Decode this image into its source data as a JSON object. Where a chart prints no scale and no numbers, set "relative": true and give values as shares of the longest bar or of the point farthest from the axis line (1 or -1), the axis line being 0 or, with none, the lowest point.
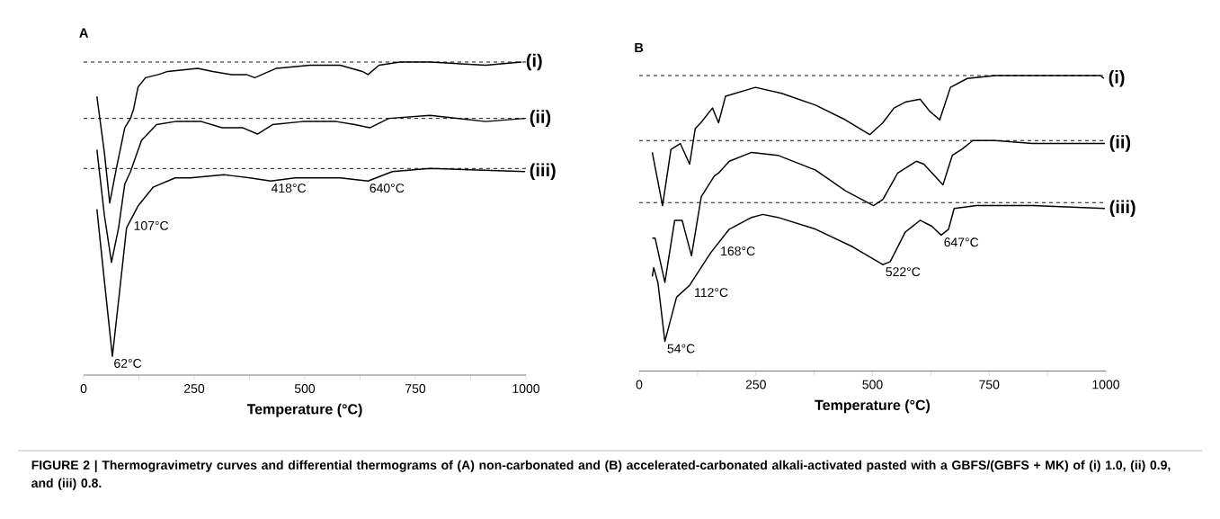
{
  "chart_data": [
    {
      "type": "line",
      "title": "A",
      "xlabel": "Temperature (°C)",
      "relative": true,
      "xlim": [
        0,
        1000
      ],
      "xticks": [
        0,
        {
          "value": 125,
          "label": null
        },
        250,
        {
          "value": 375,
          "label": null
        },
        500,
        {
          "value": 625,
          "label": null
        },
        750,
        {
          "value": 875,
          "label": null
        },
        1000
      ],
      "series": [
        {
          "name": "(i)",
          "color": "#000000",
          "x": [
            30,
            47,
            59,
            74,
            93,
            106,
            113,
            123,
            140,
            169,
            190,
            258,
            292,
            334,
            368,
            387,
            436,
            512,
            580,
            630,
            643,
            668,
            715,
            783,
            909,
            990
          ],
          "values": [
            0.89,
            0.71,
            0.55,
            0.66,
            0.79,
            0.82,
            0.85,
            0.92,
            0.95,
            0.96,
            0.97,
            0.98,
            0.97,
            0.96,
            0.96,
            0.95,
            0.98,
            0.99,
            0.99,
            0.97,
            0.96,
            0.99,
            1.0,
            1.0,
            0.99,
            1.0
          ]
        },
        {
          "name": "(ii)",
          "color": "#000000",
          "x": [
            30,
            47,
            63,
            79,
            93,
            106,
            116,
            131,
            165,
            207,
            266,
            313,
            360,
            393,
            427,
            495,
            571,
            613,
            647,
            690,
            783,
            909,
            998
          ],
          "values": [
            0.72,
            0.51,
            0.36,
            0.47,
            0.61,
            0.65,
            0.69,
            0.75,
            0.8,
            0.81,
            0.81,
            0.79,
            0.79,
            0.77,
            0.8,
            0.81,
            0.81,
            0.8,
            0.79,
            0.82,
            0.83,
            0.81,
            0.82
          ]
        },
        {
          "name": "(iii)",
          "color": "#000000",
          "x": [
            30,
            47,
            65,
            80,
            97,
            123,
            157,
            207,
            241,
            317,
            376,
            423,
            478,
            580,
            643,
            698,
            783,
            998
          ],
          "values": [
            0.53,
            0.3,
            0.06,
            0.25,
            0.47,
            0.54,
            0.6,
            0.63,
            0.63,
            0.64,
            0.63,
            0.62,
            0.63,
            0.63,
            0.62,
            0.65,
            0.66,
            0.65
          ]
        }
      ],
      "ref_lines": [
        {
          "axis": "y",
          "value": 1.0,
          "color": "#000000",
          "line_style": "dashed"
        },
        {
          "axis": "y",
          "value": 0.82,
          "color": "#000000",
          "line_style": "dashed"
        },
        {
          "axis": "y",
          "value": 0.66,
          "color": "#000000",
          "line_style": "dashed"
        }
      ],
      "annotations": [
        {
          "text": "62°C",
          "x": 62,
          "y": 0.06
        },
        {
          "text": "107°C",
          "x": 107,
          "y": 0.5
        },
        {
          "text": "418°C",
          "x": 418,
          "y": 0.62
        },
        {
          "text": "640°C",
          "x": 640,
          "y": 0.62
        },
        "FIGURE 2 | Thermogravimetry curves and differential thermograms of (A) non-carbonated and (B) accelerated-carbonated alkali-activated pasted with a GBFS/(GBFS + MK) of (i) 1.0, (ii) 0.9, and (iii) 0.8."
      ]
    },
    {
      "type": "line",
      "title": "B",
      "xlabel": "Temperature (°C)",
      "relative": true,
      "xlim": [
        0,
        1000
      ],
      "xticks": [
        0,
        {
          "value": 125,
          "label": null
        },
        250,
        {
          "value": 375,
          "label": null
        },
        500,
        {
          "value": 625,
          "label": null
        },
        750,
        {
          "value": 875,
          "label": null
        },
        1000
      ],
      "series": [
        {
          "name": "(i)",
          "color": "#000000",
          "x": [
            28,
            50,
            68,
            88,
            108,
            120,
            132,
            157,
            170,
            185,
            249,
            305,
            378,
            442,
            494,
            522,
            546,
            570,
            602,
            622,
            644,
            667,
            703,
            763,
            988,
            996
          ],
          "values": [
            0.74,
            0.56,
            0.75,
            0.77,
            0.7,
            0.82,
            0.84,
            0.89,
            0.84,
            0.93,
            0.96,
            0.94,
            0.9,
            0.85,
            0.8,
            0.84,
            0.89,
            0.91,
            0.92,
            0.88,
            0.85,
            0.96,
            0.99,
            1.0,
            1.0,
            0.99
          ]
        },
        {
          "name": "(ii)",
          "color": "#000000",
          "x": [
            28,
            34,
            55,
            76,
            92,
            112,
            133,
            161,
            170,
            193,
            241,
            297,
            378,
            442,
            502,
            522,
            554,
            594,
            610,
            651,
            671,
            691,
            715,
            763,
            843,
            998
          ],
          "values": [
            0.45,
            0.45,
            0.3,
            0.51,
            0.51,
            0.39,
            0.59,
            0.66,
            0.67,
            0.71,
            0.74,
            0.73,
            0.68,
            0.61,
            0.56,
            0.58,
            0.67,
            0.71,
            0.7,
            0.63,
            0.73,
            0.75,
            0.78,
            0.78,
            0.77,
            0.77
          ]
        },
        {
          "name": "(iii)",
          "color": "#000000",
          "x": [
            28,
            31,
            40,
            55,
            80,
            108,
            153,
            193,
            241,
            265,
            297,
            378,
            458,
            522,
            538,
            570,
            602,
            627,
            647,
            663,
            675,
            723,
            843,
            998
          ],
          "values": [
            0.32,
            0.35,
            0.3,
            0.1,
            0.25,
            0.29,
            0.4,
            0.48,
            0.52,
            0.53,
            0.52,
            0.48,
            0.42,
            0.36,
            0.37,
            0.47,
            0.51,
            0.49,
            0.46,
            0.48,
            0.55,
            0.56,
            0.56,
            0.55
          ]
        }
      ],
      "ref_lines": [
        {
          "axis": "y",
          "value": 1.0,
          "color": "#000000",
          "line_style": "dashed"
        },
        {
          "axis": "y",
          "value": 0.78,
          "color": "#000000",
          "line_style": "dashed"
        },
        {
          "axis": "y",
          "value": 0.57,
          "color": "#000000",
          "line_style": "dashed"
        }
      ],
      "annotations": [
        {
          "text": "54°C",
          "x": 54,
          "y": 0.1
        },
        {
          "text": "112°C",
          "x": 112,
          "y": 0.29
        },
        {
          "text": "168°C",
          "x": 168,
          "y": 0.43
        },
        {
          "text": "522°C",
          "x": 522,
          "y": 0.36
        },
        {
          "text": "647°C",
          "x": 647,
          "y": 0.46
        }
      ]
    }
  ]
}
